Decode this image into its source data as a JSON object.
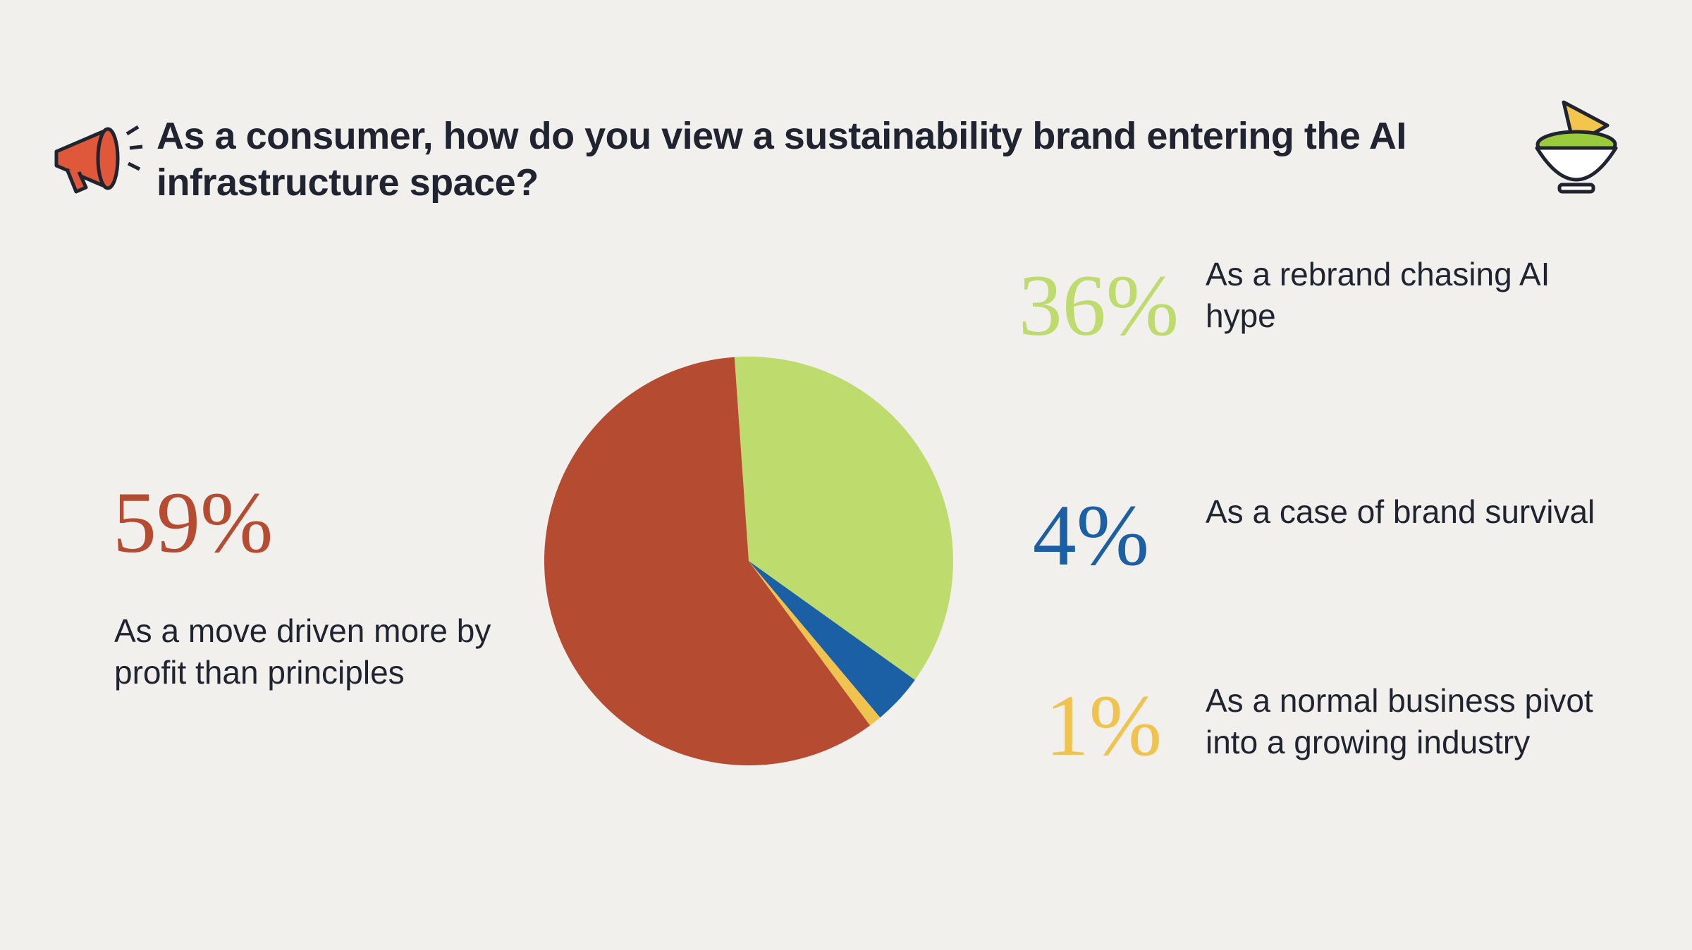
{
  "chart_data": {
    "type": "pie",
    "title": "As a consumer, how do you view a sustainability brand entering the AI infrastructure space?",
    "categories": [
      "As a rebrand chasing AI hype",
      "As a case of brand survival",
      "As a normal business pivot into a growing industry",
      "As a move driven more by profit than principles"
    ],
    "values": [
      36,
      4,
      1,
      59
    ],
    "value_labels": [
      "36%",
      "4%",
      "1%",
      "59%"
    ],
    "colors": [
      "#bedb6e",
      "#1b5fa4",
      "#f0c24e",
      "#b54b31"
    ]
  }
}
